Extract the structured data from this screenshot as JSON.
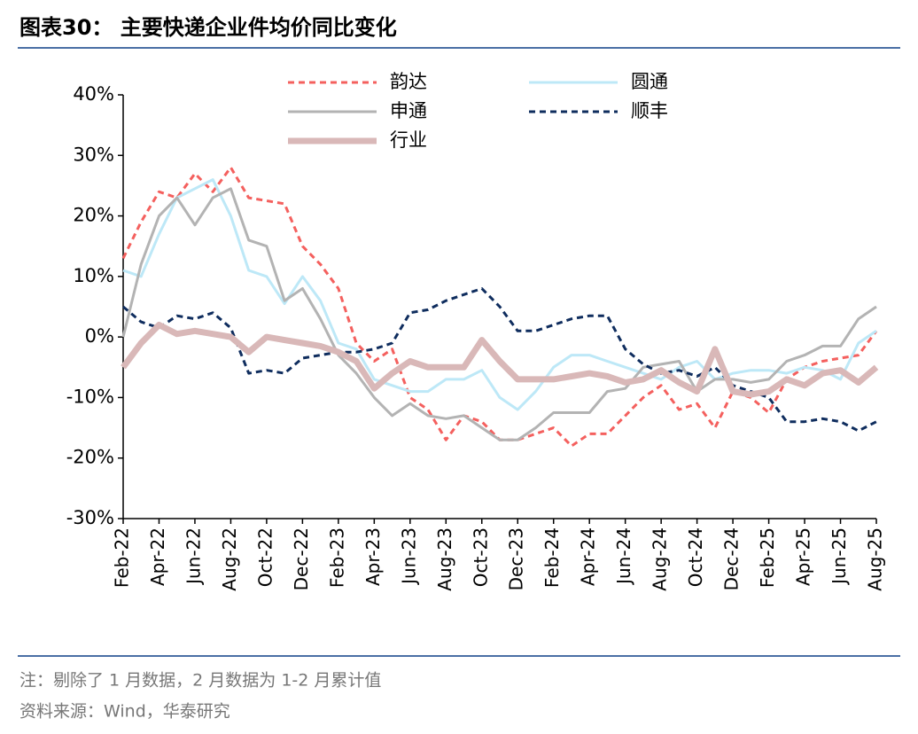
{
  "chart_data": {
    "type": "line",
    "title": "图表30： 主要快递企业件均价同比变化",
    "notes": [
      "注：剔除了 1 月数据，2 月数据为 1-2 月累计值",
      "资料来源：Wind，华泰研究"
    ],
    "categories": [
      "Feb-22",
      null,
      "Apr-22",
      null,
      "Jun-22",
      null,
      "Aug-22",
      null,
      "Oct-22",
      null,
      "Dec-22",
      null,
      "Feb-23",
      null,
      "Apr-23",
      null,
      "Jun-23",
      null,
      "Aug-23",
      null,
      "Oct-23",
      null,
      "Dec-23",
      null,
      "Feb-24",
      null,
      "Apr-24",
      null,
      "Jun-24",
      null,
      "Aug-24",
      null,
      "Oct-24",
      null,
      "Dec-24",
      null,
      "Feb-25",
      null,
      "Apr-25",
      null,
      "Jun-25",
      null,
      "Aug-25"
    ],
    "series": [
      {
        "name": "韵达",
        "color": "#f4605e",
        "dashed": true,
        "line_width": 3,
        "values": [
          13,
          19,
          24,
          23,
          27,
          24,
          28,
          23,
          22.5,
          22,
          15,
          12,
          8,
          -1,
          -4,
          -2,
          -10,
          -12,
          -17,
          -13,
          -14,
          -17,
          -17,
          -16,
          -15,
          -18,
          -16,
          -16,
          -13,
          -10,
          -8,
          -12,
          -11,
          -15,
          -9,
          -10,
          -12.5,
          -7,
          -5,
          -4,
          -3.5,
          -3,
          1
        ]
      },
      {
        "name": "圆通",
        "color": "#bde8f7",
        "dashed": false,
        "line_width": 3,
        "values": [
          11,
          10,
          17,
          23,
          24.5,
          26,
          20,
          11,
          10,
          5.5,
          10,
          6,
          -1,
          -2,
          -7,
          -8,
          -9,
          -9,
          -7,
          -7,
          -5.5,
          -10,
          -12,
          -9,
          -5,
          -3,
          -3,
          -4,
          -5,
          -6,
          -7,
          -5,
          -4,
          -7,
          -6,
          -5.5,
          -5.5,
          -6,
          -5,
          -5.5,
          -7,
          -1,
          1
        ]
      },
      {
        "name": "申通",
        "color": "#b3b3b3",
        "dashed": false,
        "line_width": 3,
        "values": [
          0,
          12,
          20,
          23,
          18.5,
          23,
          24.5,
          16,
          15,
          6,
          8,
          3,
          -3,
          -6,
          -10,
          -13,
          -11,
          -13,
          -13.5,
          -13,
          -15,
          -17,
          -17,
          -15,
          -12.5,
          -12.5,
          -12.5,
          -9,
          -8.5,
          -5,
          -4.5,
          -4,
          -9,
          -7,
          -7,
          -7.5,
          -7,
          -4,
          -3,
          -1.5,
          -1.5,
          3,
          5
        ]
      },
      {
        "name": "顺丰",
        "color": "#0f2d5e",
        "dashed": true,
        "line_width": 3,
        "values": [
          5,
          2.5,
          1.5,
          3.5,
          3,
          4,
          1.5,
          -6,
          -5.5,
          -6,
          -3.5,
          -3,
          -2.5,
          -2.5,
          -2,
          -1,
          4,
          4.5,
          6,
          7,
          8,
          5,
          1,
          1,
          2,
          3,
          3.5,
          3.5,
          -2,
          -4.5,
          -6,
          -5.5,
          -6.5,
          -5,
          -8,
          -9,
          -10,
          -14,
          -14,
          -13.5,
          -14,
          -15.5,
          -14
        ]
      },
      {
        "name": "行业",
        "color": "#d9b8b8",
        "dashed": false,
        "line_width": 7,
        "values": [
          -5,
          -1,
          2,
          0.5,
          1,
          0.5,
          0,
          -2.5,
          0,
          -0.5,
          -1,
          -1.5,
          -2.5,
          -4,
          -8.5,
          -6,
          -4,
          -5,
          -5,
          -5,
          -0.5,
          -4,
          -7,
          -7,
          -7,
          -6.5,
          -6,
          -6.5,
          -7.5,
          -7,
          -5.5,
          -7.5,
          -9,
          -2,
          -9,
          -9.5,
          -9,
          -7,
          -8,
          -6,
          -5.5,
          -7.5,
          -5
        ]
      }
    ],
    "ylim": [
      -30,
      40
    ],
    "yticks": [
      {
        "value": -30,
        "label": "-30%"
      },
      {
        "value": -20,
        "label": "-20%"
      },
      {
        "value": -10,
        "label": "-10%"
      },
      {
        "value": 0,
        "label": "0%"
      },
      {
        "value": 10,
        "label": "10%"
      },
      {
        "value": 20,
        "label": "20%"
      },
      {
        "value": 30,
        "label": "30%"
      },
      {
        "value": 40,
        "label": "40%"
      }
    ],
    "grid": false
  }
}
